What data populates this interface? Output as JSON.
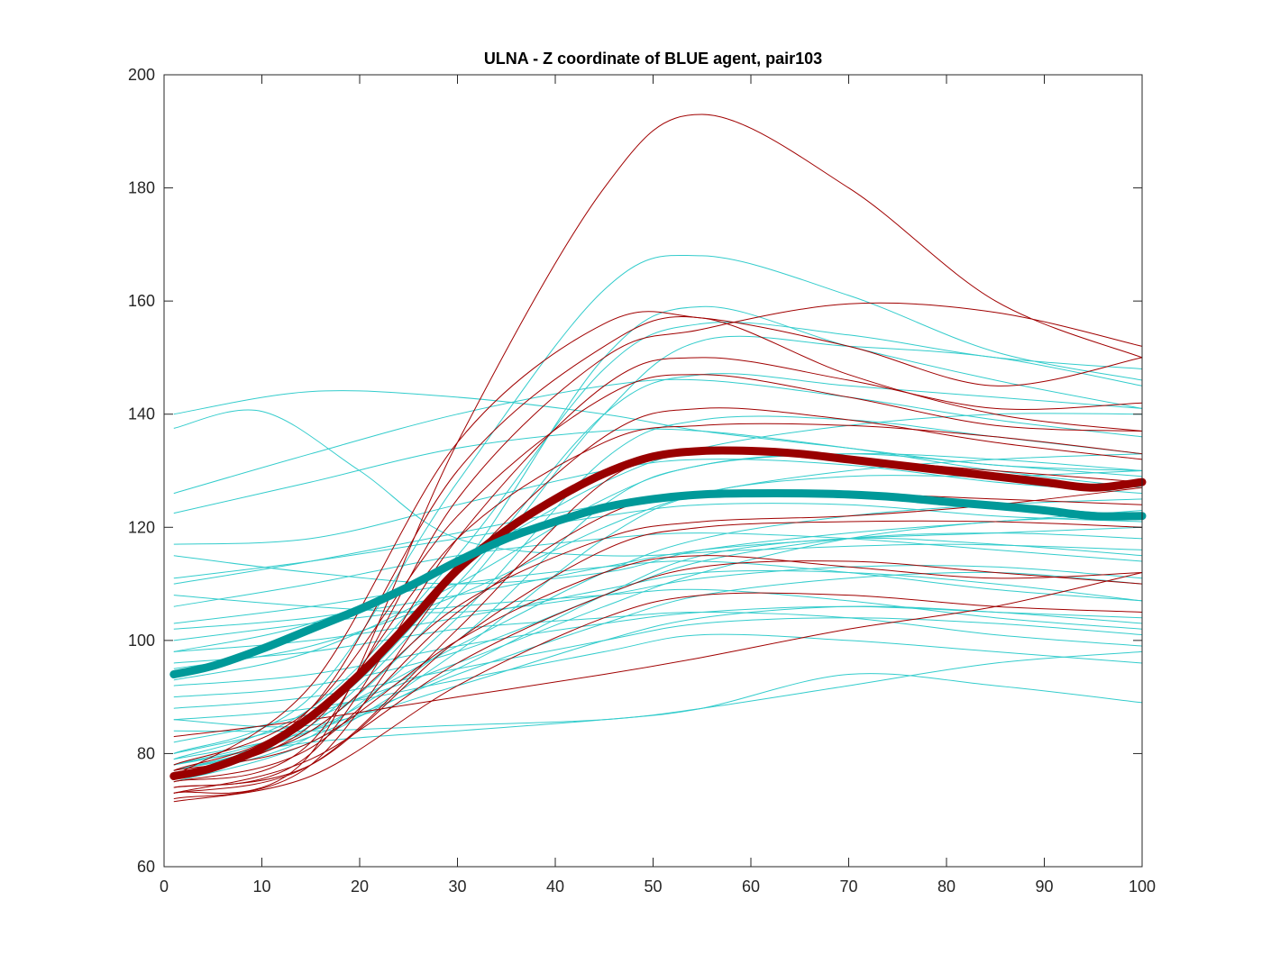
{
  "chart_data": {
    "type": "line",
    "title": "ULNA - Z coordinate of BLUE agent, pair103",
    "xlabel": "",
    "ylabel": "",
    "xlim": [
      0,
      100
    ],
    "ylim": [
      60,
      200
    ],
    "xticks": [
      "0",
      "10",
      "20",
      "30",
      "40",
      "50",
      "60",
      "70",
      "80",
      "90",
      "100"
    ],
    "yticks": [
      "60",
      "80",
      "100",
      "120",
      "140",
      "160",
      "180",
      "200"
    ],
    "grid": false,
    "legend": "none",
    "colors": {
      "red": "#990000",
      "teal": "#009999",
      "cyan": "#33CCCC",
      "darkred": "#A00000"
    },
    "mean_series": [
      {
        "role": "red-mean",
        "x": [
          1,
          5,
          10,
          15,
          20,
          25,
          30,
          35,
          40,
          45,
          50,
          55,
          60,
          65,
          70,
          75,
          80,
          85,
          90,
          95,
          100
        ],
        "y": [
          76,
          77.5,
          81,
          86.5,
          94,
          103,
          112.5,
          119.5,
          125,
          129.5,
          132.5,
          133.5,
          133.5,
          133,
          132,
          131,
          130,
          129,
          128,
          127,
          128
        ]
      },
      {
        "role": "teal-mean",
        "x": [
          1,
          5,
          10,
          15,
          20,
          25,
          30,
          35,
          40,
          45,
          50,
          55,
          60,
          65,
          70,
          75,
          80,
          85,
          90,
          95,
          100
        ],
        "y": [
          94,
          95.5,
          98.5,
          102,
          105.5,
          109.5,
          114,
          118,
          121,
          123.5,
          125,
          125.8,
          126,
          126,
          125.8,
          125.3,
          124.5,
          123.8,
          123,
          122,
          122
        ]
      }
    ],
    "red_trials": [
      {
        "x": [
          1,
          15,
          30,
          45,
          55,
          70,
          85,
          100
        ],
        "y": [
          73,
          80,
          135,
          180,
          193,
          180,
          160,
          150
        ]
      },
      {
        "x": [
          1,
          15,
          30,
          45,
          55,
          70,
          85,
          100
        ],
        "y": [
          76,
          92,
          135,
          156,
          157,
          152,
          145,
          150
        ]
      },
      {
        "x": [
          1,
          15,
          30,
          45,
          55,
          70,
          85,
          100
        ],
        "y": [
          75,
          82,
          125,
          150,
          155,
          159.5,
          158,
          152
        ]
      },
      {
        "x": [
          1,
          15,
          30,
          45,
          55,
          70,
          85,
          100
        ],
        "y": [
          77,
          88,
          130,
          152,
          157,
          147,
          140,
          137
        ]
      },
      {
        "x": [
          1,
          15,
          30,
          45,
          55,
          70,
          85,
          100
        ],
        "y": [
          74,
          80,
          118,
          145,
          150,
          146,
          141,
          142
        ]
      },
      {
        "x": [
          1,
          15,
          30,
          45,
          55,
          70,
          85,
          100
        ],
        "y": [
          78,
          88,
          122,
          143,
          147,
          143,
          138,
          137
        ]
      },
      {
        "x": [
          1,
          15,
          30,
          45,
          55,
          70,
          85,
          100
        ],
        "y": [
          72,
          78,
          112,
          136,
          141,
          139,
          135,
          132
        ]
      },
      {
        "x": [
          1,
          15,
          30,
          45,
          55,
          70,
          85,
          100
        ],
        "y": [
          76,
          85,
          118,
          135,
          138,
          138,
          136,
          133
        ]
      },
      {
        "x": [
          1,
          15,
          30,
          45,
          55,
          70,
          85,
          100
        ],
        "y": [
          73,
          78,
          102,
          128,
          133,
          132,
          130,
          128
        ]
      },
      {
        "x": [
          1,
          15,
          30,
          45,
          55,
          70,
          85,
          100
        ],
        "y": [
          75,
          81,
          105,
          122,
          126,
          126,
          125,
          124
        ]
      },
      {
        "x": [
          1,
          15,
          30,
          45,
          55,
          70,
          85,
          100
        ],
        "y": [
          74,
          78,
          100,
          116,
          120,
          121,
          121,
          120
        ]
      },
      {
        "x": [
          1,
          15,
          30,
          45,
          55,
          70,
          85,
          100
        ],
        "y": [
          77,
          82,
          100,
          112,
          115,
          113,
          111,
          112
        ]
      },
      {
        "x": [
          1,
          15,
          30,
          45,
          55,
          70,
          85,
          100
        ],
        "y": [
          71.5,
          76,
          92,
          104,
          108,
          108,
          106,
          105
        ]
      },
      {
        "x": [
          1,
          15,
          30,
          45,
          55,
          70,
          85,
          100
        ],
        "y": [
          83,
          86,
          90,
          94,
          97,
          102,
          106,
          112
        ]
      },
      {
        "x": [
          1,
          15,
          30,
          45,
          55,
          70,
          85,
          100
        ],
        "y": [
          76,
          84,
          106,
          118,
          121,
          122,
          124,
          127
        ]
      },
      {
        "x": [
          1,
          15,
          30,
          45,
          55,
          70,
          85,
          100
        ],
        "y": [
          73,
          79,
          96,
          108,
          113,
          114,
          112,
          110
        ]
      }
    ],
    "cyan_trials": [
      {
        "x": [
          1,
          15,
          30,
          45,
          55,
          70,
          85,
          100
        ],
        "y": [
          140,
          144,
          143,
          140,
          137,
          134,
          131,
          130
        ]
      },
      {
        "x": [
          1,
          10,
          20,
          30,
          45,
          60,
          80,
          100
        ],
        "y": [
          137.5,
          140.5,
          130,
          118,
          115,
          116,
          117,
          116
        ]
      },
      {
        "x": [
          1,
          15,
          30,
          45,
          55,
          70,
          85,
          100
        ],
        "y": [
          126,
          133,
          140,
          145,
          146,
          143,
          139,
          136
        ]
      },
      {
        "x": [
          1,
          15,
          30,
          45,
          55,
          70,
          85,
          100
        ],
        "y": [
          122.5,
          128,
          134,
          137,
          137,
          134,
          130,
          127
        ]
      },
      {
        "x": [
          1,
          15,
          30,
          45,
          55,
          70,
          85,
          100
        ],
        "y": [
          117,
          118,
          124,
          130,
          132,
          131,
          128,
          126
        ]
      },
      {
        "x": [
          1,
          15,
          30,
          45,
          55,
          70,
          85,
          100
        ],
        "y": [
          115,
          112,
          110,
          112,
          116,
          119,
          121,
          123
        ]
      },
      {
        "x": [
          1,
          15,
          30,
          45,
          55,
          70,
          85,
          100
        ],
        "y": [
          111,
          114,
          118,
          122,
          124,
          124,
          122,
          121
        ]
      },
      {
        "x": [
          1,
          15,
          30,
          45,
          55,
          70,
          85,
          100
        ],
        "y": [
          106,
          110,
          115,
          118,
          119,
          118,
          116,
          114
        ]
      },
      {
        "x": [
          1,
          15,
          30,
          45,
          55,
          70,
          85,
          100
        ],
        "y": [
          103,
          106,
          110,
          113,
          114,
          112,
          109,
          107
        ]
      },
      {
        "x": [
          1,
          15,
          30,
          45,
          55,
          70,
          85,
          100
        ],
        "y": [
          100,
          103,
          106,
          108,
          109,
          107,
          104,
          102
        ]
      },
      {
        "x": [
          1,
          15,
          30,
          45,
          55,
          70,
          85,
          100
        ],
        "y": [
          96,
          98,
          102,
          104,
          105,
          104,
          101,
          99
        ]
      },
      {
        "x": [
          1,
          15,
          30,
          45,
          55,
          70,
          85,
          100
        ],
        "y": [
          92,
          94,
          99,
          103,
          105,
          106,
          105,
          104
        ]
      },
      {
        "x": [
          1,
          15,
          30,
          45,
          55,
          70,
          85,
          100
        ],
        "y": [
          88,
          90,
          95,
          100,
          103,
          104,
          103,
          101
        ]
      },
      {
        "x": [
          1,
          15,
          30,
          45,
          55,
          70,
          85,
          100
        ],
        "y": [
          84,
          84,
          85,
          86,
          88,
          92,
          96,
          98
        ]
      },
      {
        "x": [
          1,
          15,
          30,
          45,
          55,
          70,
          85,
          100
        ],
        "y": [
          78,
          82,
          84,
          86,
          88,
          94,
          92,
          89
        ]
      },
      {
        "x": [
          1,
          15,
          30,
          45,
          55,
          70,
          85,
          100
        ],
        "y": [
          77,
          84,
          108,
          140,
          153,
          152,
          150,
          145
        ]
      },
      {
        "x": [
          1,
          15,
          30,
          45,
          55,
          70,
          85,
          100
        ],
        "y": [
          79,
          88,
          115,
          148,
          156,
          154,
          150,
          148
        ]
      },
      {
        "x": [
          1,
          15,
          30,
          45,
          55,
          70,
          85,
          100
        ],
        "y": [
          78,
          86,
          112,
          150,
          159,
          152,
          146,
          141
        ]
      },
      {
        "x": [
          1,
          15,
          30,
          45,
          55,
          70,
          85,
          100
        ],
        "y": [
          80,
          90,
          128,
          162,
          168,
          161,
          151,
          146
        ]
      },
      {
        "x": [
          1,
          15,
          30,
          45,
          55,
          70,
          85,
          100
        ],
        "y": [
          77,
          85,
          110,
          140,
          147,
          145,
          143,
          141
        ]
      },
      {
        "x": [
          1,
          15,
          30,
          45,
          55,
          70,
          85,
          100
        ],
        "y": [
          76,
          83,
          104,
          132,
          139,
          139,
          136,
          133
        ]
      },
      {
        "x": [
          1,
          15,
          30,
          45,
          55,
          70,
          85,
          100
        ],
        "y": [
          78,
          84,
          100,
          124,
          131,
          133,
          131,
          129
        ]
      },
      {
        "x": [
          1,
          15,
          30,
          45,
          55,
          70,
          85,
          100
        ],
        "y": [
          75,
          82,
          98,
          118,
          126,
          129,
          129,
          130
        ]
      },
      {
        "x": [
          1,
          15,
          30,
          45,
          55,
          70,
          85,
          100
        ],
        "y": [
          80,
          86,
          99,
          112,
          118,
          122,
          124,
          125
        ]
      },
      {
        "x": [
          1,
          15,
          30,
          45,
          55,
          70,
          85,
          100
        ],
        "y": [
          82,
          87,
          96,
          106,
          112,
          118,
          121,
          122
        ]
      },
      {
        "x": [
          1,
          15,
          30,
          45,
          55,
          70,
          85,
          100
        ],
        "y": [
          77,
          83,
          95,
          108,
          115,
          118,
          117,
          115
        ]
      },
      {
        "x": [
          1,
          15,
          30,
          45,
          55,
          70,
          85,
          100
        ],
        "y": [
          79,
          84,
          94,
          103,
          108,
          111,
          112,
          110
        ]
      },
      {
        "x": [
          1,
          15,
          30,
          45,
          55,
          70,
          85,
          100
        ],
        "y": [
          86,
          85,
          92,
          100,
          104,
          106,
          105,
          103
        ]
      },
      {
        "x": [
          1,
          15,
          30,
          45,
          55,
          70,
          85,
          100
        ],
        "y": [
          90,
          92,
          98,
          108,
          114,
          118,
          119,
          118
        ]
      },
      {
        "x": [
          1,
          15,
          30,
          45,
          55,
          70,
          85,
          100
        ],
        "y": [
          95,
          99,
          108,
          120,
          126,
          130,
          132,
          133
        ]
      },
      {
        "x": [
          1,
          15,
          30,
          45,
          55,
          70,
          85,
          100
        ],
        "y": [
          98,
          103,
          114,
          128,
          134,
          138,
          140,
          140
        ]
      },
      {
        "x": [
          1,
          15,
          30,
          45,
          55,
          70,
          85,
          100
        ],
        "y": [
          93,
          98,
          110,
          125,
          131,
          133,
          132,
          130
        ]
      },
      {
        "x": [
          1,
          15,
          30,
          45,
          55,
          70,
          85,
          100
        ],
        "y": [
          110,
          114,
          119,
          124,
          126,
          126,
          124,
          122
        ]
      },
      {
        "x": [
          1,
          15,
          30,
          45,
          55,
          70,
          85,
          100
        ],
        "y": [
          108,
          106,
          105,
          108,
          111,
          113,
          113,
          111
        ]
      },
      {
        "x": [
          1,
          15,
          30,
          45,
          55,
          70,
          85,
          100
        ],
        "y": [
          102,
          104,
          108,
          113,
          116,
          118,
          119,
          120
        ]
      },
      {
        "x": [
          1,
          15,
          30,
          45,
          55,
          70,
          85,
          100
        ],
        "y": [
          98,
          100,
          104,
          109,
          112,
          112,
          110,
          107
        ]
      },
      {
        "x": [
          1,
          15,
          30,
          45,
          55,
          70,
          85,
          100
        ],
        "y": [
          86,
          88,
          93,
          98,
          101,
          100,
          98,
          96
        ]
      }
    ]
  }
}
